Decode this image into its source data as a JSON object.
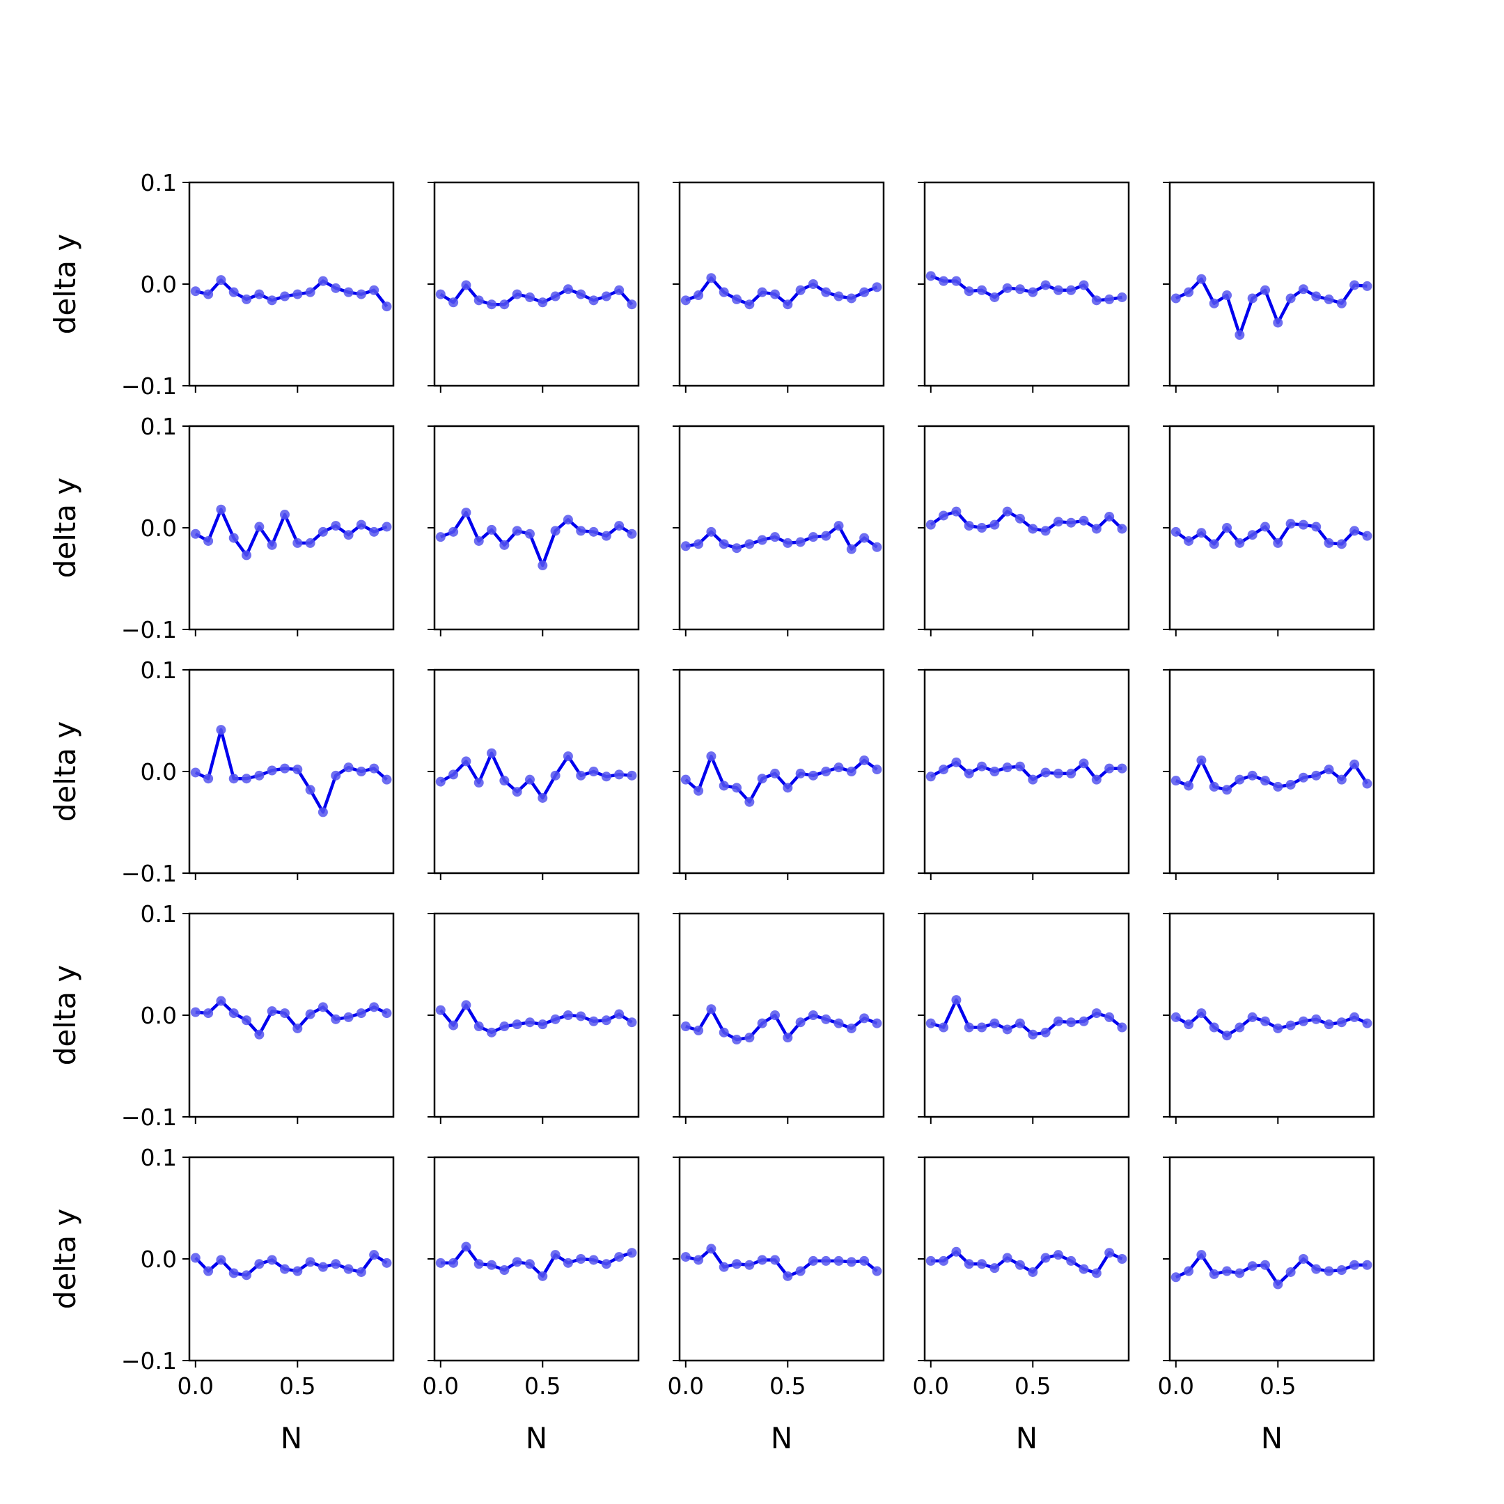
{
  "figure": {
    "rows": 5,
    "cols": 5,
    "line_color": "#0000ee",
    "marker_color": "#5555ee",
    "background": "#ffffff"
  },
  "chart_data": {
    "type": "line",
    "layout": "grid-5x5",
    "xlabel": "N",
    "ylabel": "delta y",
    "ylim": [
      -0.1,
      0.1
    ],
    "yticks": [
      -0.1,
      0.0,
      0.1
    ],
    "ytick_labels": [
      "−0.1",
      "0.0",
      "0.1"
    ],
    "xlim": [
      -0.03,
      0.97
    ],
    "xticks": [
      0.0,
      0.5
    ],
    "xtick_labels": [
      "0.0",
      "0.5"
    ],
    "x": [
      0.0,
      0.0625,
      0.125,
      0.1875,
      0.25,
      0.3125,
      0.375,
      0.4375,
      0.5,
      0.5625,
      0.625,
      0.6875,
      0.75,
      0.8125,
      0.875,
      0.9375
    ],
    "panels": [
      {
        "y": [
          -0.007,
          -0.01,
          0.004,
          -0.008,
          -0.015,
          -0.01,
          -0.016,
          -0.012,
          -0.01,
          -0.008,
          0.003,
          -0.004,
          -0.008,
          -0.01,
          -0.006,
          -0.022
        ]
      },
      {
        "y": [
          -0.01,
          -0.018,
          -0.001,
          -0.016,
          -0.02,
          -0.02,
          -0.01,
          -0.013,
          -0.018,
          -0.012,
          -0.005,
          -0.01,
          -0.016,
          -0.012,
          -0.006,
          -0.02
        ]
      },
      {
        "y": [
          -0.016,
          -0.011,
          0.006,
          -0.008,
          -0.015,
          -0.02,
          -0.008,
          -0.01,
          -0.02,
          -0.006,
          0.0,
          -0.008,
          -0.012,
          -0.014,
          -0.008,
          -0.003
        ]
      },
      {
        "y": [
          0.008,
          0.003,
          0.003,
          -0.007,
          -0.006,
          -0.013,
          -0.004,
          -0.005,
          -0.008,
          -0.001,
          -0.006,
          -0.006,
          -0.001,
          -0.016,
          -0.015,
          -0.013
        ]
      },
      {
        "y": [
          -0.014,
          -0.008,
          0.005,
          -0.019,
          -0.011,
          -0.05,
          -0.014,
          -0.006,
          -0.038,
          -0.014,
          -0.005,
          -0.012,
          -0.015,
          -0.019,
          -0.001,
          -0.002
        ]
      },
      {
        "y": [
          -0.006,
          -0.013,
          0.018,
          -0.01,
          -0.027,
          0.001,
          -0.017,
          0.013,
          -0.015,
          -0.015,
          -0.004,
          0.002,
          -0.007,
          0.003,
          -0.004,
          0.001
        ]
      },
      {
        "y": [
          -0.009,
          -0.004,
          0.015,
          -0.013,
          -0.002,
          -0.017,
          -0.003,
          -0.006,
          -0.037,
          -0.003,
          0.008,
          -0.003,
          -0.004,
          -0.008,
          0.002,
          -0.006
        ]
      },
      {
        "y": [
          -0.018,
          -0.016,
          -0.004,
          -0.016,
          -0.02,
          -0.016,
          -0.012,
          -0.009,
          -0.015,
          -0.014,
          -0.009,
          -0.008,
          0.002,
          -0.021,
          -0.01,
          -0.019
        ]
      },
      {
        "y": [
          0.003,
          0.012,
          0.016,
          0.002,
          0.0,
          0.003,
          0.016,
          0.009,
          -0.001,
          -0.003,
          0.006,
          0.005,
          0.007,
          -0.001,
          0.011,
          -0.001
        ]
      },
      {
        "y": [
          -0.004,
          -0.013,
          -0.005,
          -0.016,
          0.0,
          -0.015,
          -0.007,
          0.001,
          -0.015,
          0.004,
          0.003,
          0.001,
          -0.015,
          -0.016,
          -0.003,
          -0.008
        ]
      },
      {
        "y": [
          -0.001,
          -0.007,
          0.041,
          -0.007,
          -0.007,
          -0.004,
          0.001,
          0.003,
          0.002,
          -0.018,
          -0.04,
          -0.004,
          0.004,
          0.0,
          0.003,
          -0.008
        ]
      },
      {
        "y": [
          -0.01,
          -0.003,
          0.01,
          -0.011,
          0.018,
          -0.009,
          -0.02,
          -0.008,
          -0.026,
          -0.004,
          0.015,
          -0.004,
          0.0,
          -0.005,
          -0.003,
          -0.004
        ]
      },
      {
        "y": [
          -0.008,
          -0.019,
          0.015,
          -0.014,
          -0.016,
          -0.03,
          -0.007,
          -0.002,
          -0.016,
          -0.002,
          -0.004,
          0.0,
          0.004,
          0.0,
          0.011,
          0.002
        ]
      },
      {
        "y": [
          -0.005,
          0.002,
          0.009,
          -0.002,
          0.005,
          0.0,
          0.004,
          0.005,
          -0.008,
          -0.001,
          -0.002,
          -0.002,
          0.008,
          -0.008,
          0.003,
          0.003
        ]
      },
      {
        "y": [
          -0.009,
          -0.014,
          0.011,
          -0.015,
          -0.018,
          -0.008,
          -0.004,
          -0.009,
          -0.015,
          -0.013,
          -0.006,
          -0.004,
          0.002,
          -0.008,
          0.007,
          -0.012
        ]
      },
      {
        "y": [
          0.003,
          0.002,
          0.014,
          0.002,
          -0.005,
          -0.019,
          0.004,
          0.002,
          -0.013,
          0.001,
          0.008,
          -0.004,
          -0.002,
          0.002,
          0.008,
          0.002
        ]
      },
      {
        "y": [
          0.005,
          -0.01,
          0.01,
          -0.011,
          -0.017,
          -0.011,
          -0.009,
          -0.007,
          -0.009,
          -0.004,
          0.0,
          -0.001,
          -0.006,
          -0.005,
          0.001,
          -0.007
        ]
      },
      {
        "y": [
          -0.011,
          -0.015,
          0.006,
          -0.017,
          -0.024,
          -0.022,
          -0.008,
          0.0,
          -0.022,
          -0.007,
          0.0,
          -0.004,
          -0.008,
          -0.013,
          -0.003,
          -0.008
        ]
      },
      {
        "y": [
          -0.008,
          -0.012,
          0.015,
          -0.012,
          -0.012,
          -0.008,
          -0.014,
          -0.008,
          -0.019,
          -0.017,
          -0.006,
          -0.007,
          -0.006,
          0.002,
          -0.002,
          -0.012
        ]
      },
      {
        "y": [
          -0.002,
          -0.009,
          0.002,
          -0.012,
          -0.02,
          -0.012,
          -0.002,
          -0.006,
          -0.013,
          -0.01,
          -0.006,
          -0.004,
          -0.009,
          -0.007,
          -0.002,
          -0.008
        ]
      },
      {
        "y": [
          0.001,
          -0.012,
          -0.001,
          -0.014,
          -0.016,
          -0.005,
          -0.001,
          -0.01,
          -0.012,
          -0.003,
          -0.008,
          -0.005,
          -0.01,
          -0.013,
          0.004,
          -0.004
        ]
      },
      {
        "y": [
          -0.004,
          -0.004,
          0.012,
          -0.005,
          -0.006,
          -0.011,
          -0.003,
          -0.005,
          -0.017,
          0.004,
          -0.004,
          0.0,
          -0.001,
          -0.005,
          0.002,
          0.006
        ]
      },
      {
        "y": [
          0.002,
          -0.001,
          0.01,
          -0.008,
          -0.005,
          -0.006,
          -0.001,
          -0.001,
          -0.017,
          -0.012,
          -0.002,
          -0.002,
          -0.002,
          -0.003,
          -0.002,
          -0.012
        ]
      },
      {
        "y": [
          -0.002,
          -0.002,
          0.007,
          -0.005,
          -0.005,
          -0.009,
          0.001,
          -0.006,
          -0.013,
          0.001,
          0.004,
          -0.002,
          -0.01,
          -0.014,
          0.006,
          0.0
        ]
      },
      {
        "y": [
          -0.018,
          -0.012,
          0.004,
          -0.015,
          -0.012,
          -0.014,
          -0.007,
          -0.006,
          -0.025,
          -0.013,
          0.0,
          -0.01,
          -0.012,
          -0.011,
          -0.006,
          -0.006
        ]
      }
    ]
  }
}
